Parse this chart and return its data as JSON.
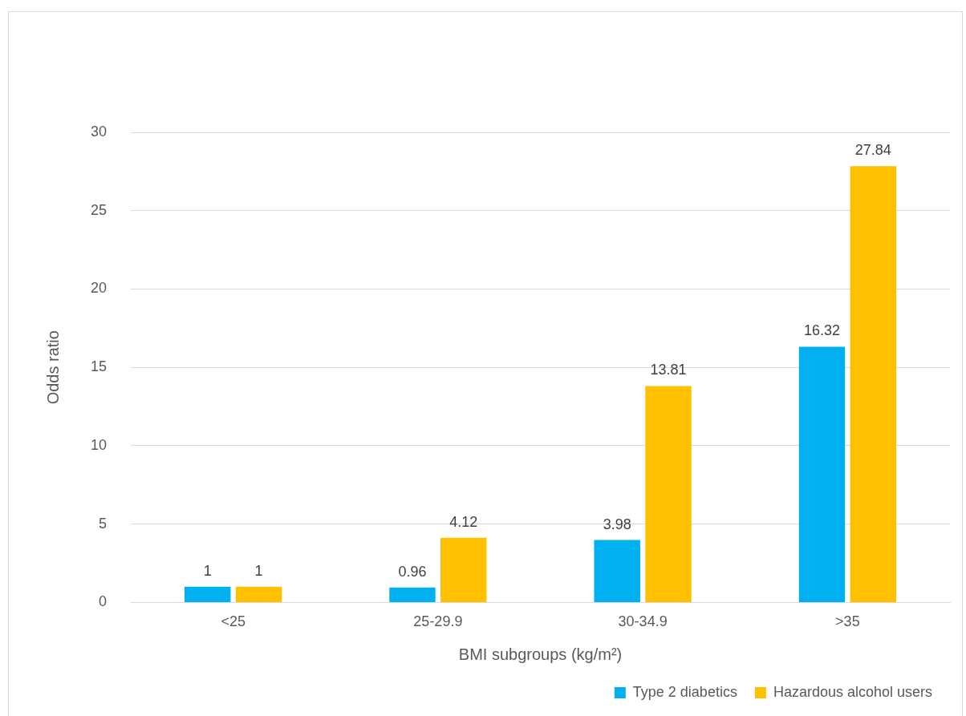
{
  "chart_data": {
    "type": "bar",
    "xlabel": "BMI subgroups (kg/m²)",
    "ylabel": "Odds ratio",
    "categories": [
      "<25",
      "25-29.9",
      "30-34.9",
      ">35"
    ],
    "series": [
      {
        "name": "Type 2 diabetics",
        "color": "#00b0f0",
        "values": [
          1,
          0.96,
          3.98,
          16.32
        ]
      },
      {
        "name": "Hazardous alcohol users",
        "color": "#ffc000",
        "values": [
          1,
          4.12,
          13.81,
          27.84
        ]
      }
    ],
    "ylim": [
      0,
      30
    ],
    "yticks": [
      0,
      5,
      10,
      15,
      20,
      25,
      30
    ],
    "grid": "y",
    "legend": "bottom right",
    "data_labels": true
  }
}
